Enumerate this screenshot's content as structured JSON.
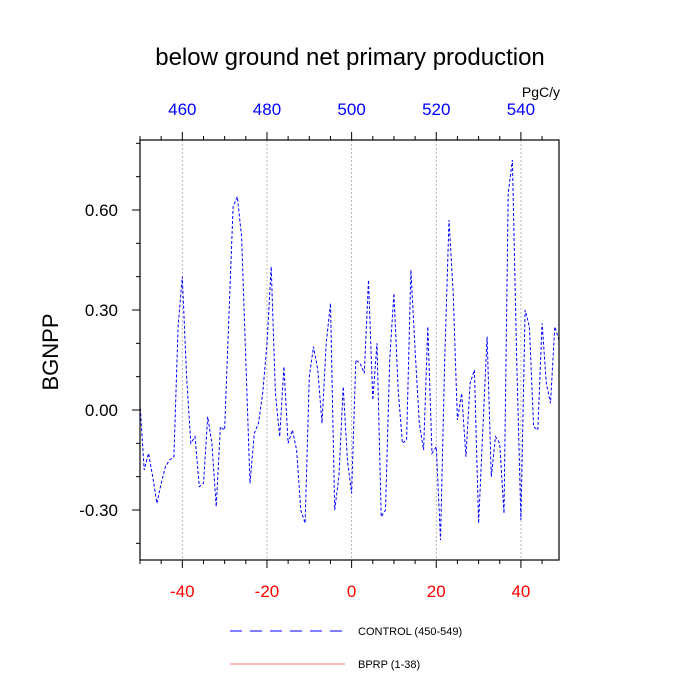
{
  "chart_data": {
    "type": "line",
    "title": "below ground net primary production",
    "ylabel": "BGNPP",
    "units": "PgC/y",
    "xlim": [
      -50,
      49
    ],
    "ylim": [
      -0.45,
      0.81
    ],
    "bottom_axis": {
      "ticks": [
        -40,
        -20,
        0,
        20,
        40
      ],
      "labels": [
        "-40",
        "-20",
        "0",
        "20",
        "40"
      ],
      "color": "#ff0000"
    },
    "top_axis": {
      "ticks": [
        -40,
        -20,
        0,
        20,
        40
      ],
      "labels": [
        "460",
        "480",
        "500",
        "520",
        "540"
      ],
      "color": "#0000ff"
    },
    "left_axis": {
      "ticks": [
        -0.3,
        0.0,
        0.3,
        0.6
      ],
      "labels": [
        "-0.30",
        "0.00",
        "0.30",
        "0.60"
      ]
    },
    "gridlines_x": [
      -40,
      -20,
      0,
      20,
      40
    ],
    "series": [
      {
        "name": "CONTROL (450-549)",
        "color": "#0000ff",
        "style": "dashed",
        "x": [
          -50,
          -49,
          -48,
          -47,
          -46,
          -45,
          -44,
          -43,
          -42,
          -41,
          -40,
          -39,
          -38,
          -37,
          -36,
          -35,
          -34,
          -33,
          -32,
          -31,
          -30,
          -29,
          -28,
          -27,
          -26,
          -25,
          -24,
          -23,
          -22,
          -21,
          -20,
          -19,
          -18,
          -17,
          -16,
          -15,
          -14,
          -13,
          -12,
          -11,
          -10,
          -9,
          -8,
          -7,
          -6,
          -5,
          -4,
          -3,
          -2,
          -1,
          0,
          1,
          2,
          3,
          4,
          5,
          6,
          7,
          8,
          9,
          10,
          11,
          12,
          13,
          14,
          15,
          16,
          17,
          18,
          19,
          20,
          21,
          22,
          23,
          24,
          25,
          26,
          27,
          28,
          29,
          30,
          31,
          32,
          33,
          34,
          35,
          36,
          37,
          38,
          39,
          40,
          41,
          42,
          43,
          44,
          45,
          46,
          47,
          48,
          49
        ],
        "values": [
          0.02,
          -0.18,
          -0.13,
          -0.2,
          -0.28,
          -0.22,
          -0.17,
          -0.15,
          -0.14,
          0.25,
          0.4,
          0.1,
          -0.1,
          -0.08,
          -0.23,
          -0.22,
          -0.02,
          -0.1,
          -0.29,
          -0.05,
          -0.06,
          0.28,
          0.61,
          0.64,
          0.52,
          0.15,
          -0.22,
          -0.07,
          -0.04,
          0.05,
          0.2,
          0.43,
          0.05,
          -0.08,
          0.13,
          -0.1,
          -0.06,
          -0.12,
          -0.3,
          -0.34,
          0.1,
          0.19,
          0.12,
          -0.04,
          0.2,
          0.32,
          -0.3,
          -0.2,
          0.07,
          -0.15,
          -0.25,
          0.15,
          0.14,
          0.11,
          0.39,
          0.03,
          0.2,
          -0.32,
          -0.3,
          0.15,
          0.35,
          0.06,
          -0.1,
          -0.09,
          0.42,
          0.18,
          -0.04,
          -0.12,
          0.25,
          -0.13,
          -0.11,
          -0.39,
          0.15,
          0.57,
          0.35,
          -0.03,
          0.05,
          -0.14,
          0.08,
          0.12,
          -0.34,
          -0.06,
          0.22,
          -0.2,
          -0.08,
          -0.1,
          -0.31,
          0.65,
          0.75,
          0.15,
          -0.33,
          0.3,
          0.25,
          -0.05,
          -0.06,
          0.26,
          0.08,
          0.02,
          0.25,
          0.21
        ]
      },
      {
        "name": "BPRP (1-38)",
        "color": "#ff0000",
        "style": "solid",
        "x": [],
        "values": []
      }
    ],
    "legend_position": "bottom-center",
    "grid": true
  }
}
